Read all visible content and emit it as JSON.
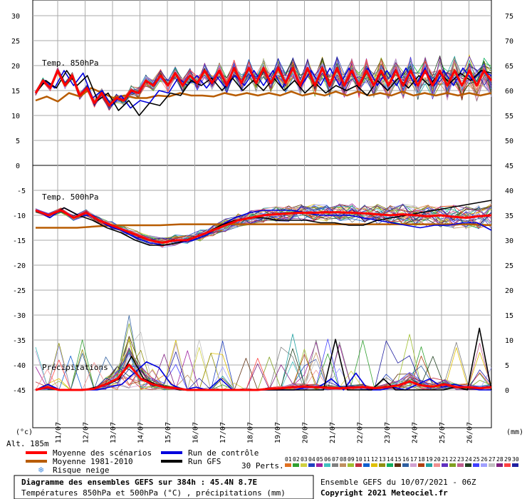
{
  "chart_data": {
    "type": "line",
    "title": "Diagramme des ensembles GEFS sur 384h : 45.4N 8.7E",
    "subtitle": "Températures 850hPa et 500hPa (°C) , précipitations (mm)",
    "ensemble_info": "Ensemble GEFS du 10/07/2021 - 06Z",
    "copyright": "Copyright 2021 Meteociel.fr",
    "altitude": "Alt. 185m",
    "y_left_unit": "(°c)",
    "y_right_unit": "(mm)",
    "x_dates": [
      "11/07",
      "12/07",
      "13/07",
      "14/07",
      "15/07",
      "16/07",
      "17/07",
      "18/07",
      "19/07",
      "20/07",
      "21/07",
      "22/07",
      "23/07",
      "24/07",
      "25/07",
      "26/07"
    ],
    "left_ticks_upper": [
      "30",
      "25",
      "20",
      "15",
      "10",
      "5",
      "0"
    ],
    "left_ticks_lower": [
      "-5",
      "-10",
      "-15",
      "-20",
      "-25",
      "-30",
      "-35",
      "-40",
      "-45"
    ],
    "right_ticks_upper": [
      "75",
      "70",
      "65",
      "60",
      "55",
      "50",
      "45"
    ],
    "right_ticks_lower": [
      "40",
      "35",
      "30",
      "25",
      "20",
      "15",
      "10",
      "5",
      "0"
    ],
    "panel_labels": {
      "t850": "Temp. 850hPa",
      "t500": "Temp. 500hPa",
      "precip": "Précipitations"
    },
    "legend": {
      "mean": "Moyenne des scénarios",
      "clim": "Moyenne 1981-2010",
      "snow": "Risque neige",
      "control": "Run de contrôle",
      "gfs": "Run GFS",
      "perts": "30 Perts."
    },
    "pert_labels": [
      "01",
      "02",
      "03",
      "04",
      "05",
      "06",
      "07",
      "08",
      "09",
      "10",
      "11",
      "12",
      "13",
      "14",
      "15",
      "16",
      "17",
      "18",
      "19",
      "20",
      "21",
      "22",
      "23",
      "24",
      "25",
      "26",
      "27",
      "28",
      "29",
      "30"
    ],
    "pert_colors": [
      "#e07020",
      "#30a030",
      "#d0d040",
      "#2040c0",
      "#a020a0",
      "#40c0c0",
      "#808080",
      "#c09060",
      "#a0c030",
      "#c03040",
      "#1060d0",
      "#e0c000",
      "#909010",
      "#10b060",
      "#603010",
      "#3060a0",
      "#d0a0d0",
      "#b04010",
      "#20a0a0",
      "#f09090",
      "#6030c0",
      "#80a020",
      "#c06090",
      "#204020",
      "#4040ff",
      "#a0a0ff",
      "#c0c0c0",
      "#802080",
      "#ff4040",
      "#2020a0"
    ],
    "colors": {
      "mean": "#ff0000",
      "clim": "#b85c00",
      "control": "#0000dd",
      "gfs": "#000000"
    },
    "series": [
      {
        "name": "Moyenne des scénarios",
        "t850": [
          14.5,
          17,
          15.5,
          19,
          16,
          18,
          14,
          15.5,
          12.5,
          14.5,
          12,
          13.5,
          13,
          15,
          14.5,
          17,
          16,
          18,
          16,
          18.5,
          16,
          18,
          16.5,
          19,
          16.5,
          19,
          16,
          19.5,
          16.5,
          19.5,
          16.5,
          19.5,
          16.5,
          19.5,
          16.5,
          19.5,
          16,
          19.5,
          16,
          19.5,
          16,
          19.5,
          16,
          19,
          16,
          19,
          16,
          19,
          16,
          19,
          16,
          19,
          16,
          19,
          16,
          19,
          16,
          19,
          16,
          19,
          16,
          19,
          17
        ],
        "t500": [
          -9,
          -10,
          -9,
          -10.5,
          -9.5,
          -11,
          -12,
          -13,
          -14,
          -15,
          -15.5,
          -15,
          -15,
          -14,
          -13,
          -12,
          -11,
          -10.5,
          -10,
          -9.8,
          -9.6,
          -9.5,
          -9.5,
          -9.4,
          -9.4,
          -9.5,
          -9.6,
          -9.8,
          -10,
          -9.8,
          -10,
          -10.2,
          -10,
          -10.3,
          -10.5,
          -10.2,
          -10
        ],
        "precip": [
          0,
          0.5,
          0,
          0,
          0,
          0.2,
          1,
          2,
          4.5,
          2,
          1,
          0.5,
          0.3,
          0,
          0,
          0,
          0,
          0,
          0,
          0,
          0.2,
          0.3,
          0.5,
          0.6,
          0.5,
          0.4,
          0.3,
          0.4,
          0.5,
          0.3,
          0.5,
          0.8,
          1.5,
          0.8,
          0.6,
          1,
          0.5,
          0.5,
          0.3,
          0.5
        ]
      },
      {
        "name": "Moyenne 1981-2010",
        "t850": [
          13,
          13.8,
          12.8,
          14.5,
          13.8,
          15.5,
          14.5,
          13.5,
          14,
          13.5,
          13.5,
          14,
          13.8,
          14.5,
          14,
          14,
          13.8,
          14.5,
          14,
          14.5,
          14,
          14.5,
          14,
          14.8,
          14,
          14.5,
          14,
          14.8,
          14,
          14.8,
          14,
          14.5,
          14,
          14.8,
          14,
          14.5,
          14,
          14.5,
          14,
          14.5,
          14,
          14.5
        ],
        "t500": [
          -12.5,
          -12.5,
          -12.5,
          -12.2,
          -12,
          -12,
          -12,
          -11.8,
          -11.8,
          -11.8,
          -11.8,
          -11.8,
          -11.8,
          -11.8,
          -11.8,
          -11.8,
          -11.8,
          -11.8,
          -11.8,
          -11.8,
          -11.8,
          -11.8,
          -12
        ]
      },
      {
        "name": "Run de contrôle",
        "t850": [
          14.5,
          17,
          15.5,
          19,
          16,
          18.5,
          13.5,
          15,
          12,
          14,
          11.5,
          13,
          12.5,
          15,
          14.5,
          17.5,
          16,
          18,
          15.5,
          18,
          15.5,
          18,
          16,
          19,
          16,
          19,
          15.5,
          19.5,
          16,
          19,
          16,
          19.5,
          16,
          19.5,
          16,
          19.5,
          16,
          19,
          16,
          19.5,
          16,
          19.5,
          16,
          19,
          16,
          19.5,
          17,
          19,
          18
        ],
        "t500": [
          -9,
          -10.5,
          -8.5,
          -10,
          -10,
          -12,
          -13,
          -14.5,
          -15.5,
          -16,
          -15.5,
          -15,
          -14,
          -12,
          -10.5,
          -9.5,
          -9,
          -9,
          -9,
          -9.5,
          -10,
          -10,
          -10,
          -10.5,
          -11,
          -11.5,
          -12,
          -12.5,
          -12,
          -12,
          -11.5,
          -11.5,
          -13
        ],
        "precip": [
          0,
          1,
          0,
          0,
          0,
          0,
          0.5,
          1,
          3,
          5,
          4,
          1,
          0,
          0.5,
          0,
          2,
          0,
          0,
          0,
          0,
          0,
          0,
          0.5,
          0.5,
          2,
          0,
          3,
          0,
          0,
          0.5,
          0,
          1,
          2,
          0.5,
          1,
          0.5,
          0,
          0
        ]
      },
      {
        "name": "Run GFS",
        "t850": [
          14.5,
          17,
          15.5,
          19,
          16,
          18,
          13,
          14.5,
          11,
          13,
          10,
          12.5,
          12,
          14.5,
          14,
          17,
          16,
          17.5,
          15,
          17.5,
          15,
          17,
          15,
          17.5,
          15,
          17,
          14.5,
          16.5,
          14.5,
          16,
          15,
          16,
          14,
          17,
          15,
          17.5,
          15.5,
          18,
          16,
          18.5,
          16.5,
          18.5,
          17,
          19,
          18.5
        ],
        "t500": [
          -9,
          -10,
          -8.5,
          -10,
          -11,
          -12.5,
          -13.5,
          -15,
          -16,
          -16,
          -15.5,
          -14.5,
          -13.5,
          -12,
          -11,
          -10.5,
          -10.5,
          -11,
          -11,
          -11,
          -11.5,
          -11.5,
          -12,
          -12,
          -11,
          -10.5,
          -10,
          -9.5,
          -9,
          -8.5,
          -8,
          -7.5,
          -7
        ],
        "precip": [
          0,
          0.5,
          0,
          0,
          0,
          0.5,
          1,
          2,
          6,
          2,
          1,
          0.5,
          0,
          0,
          0,
          0,
          0,
          0,
          0,
          0,
          0,
          0,
          0,
          0,
          0,
          9,
          0,
          0,
          0,
          2,
          0,
          0,
          0,
          0,
          0,
          0.5,
          0,
          11,
          0
        ]
      }
    ]
  }
}
